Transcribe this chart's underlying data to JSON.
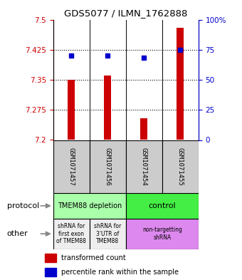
{
  "title": "GDS5077 / ILMN_1762888",
  "samples": [
    "GSM1071457",
    "GSM1071456",
    "GSM1071454",
    "GSM1071455"
  ],
  "red_values": [
    7.35,
    7.36,
    7.255,
    7.48
  ],
  "blue_values": [
    7.41,
    7.41,
    7.405,
    7.425
  ],
  "y_min": 7.2,
  "y_max": 7.5,
  "y_ticks": [
    7.2,
    7.275,
    7.35,
    7.425,
    7.5
  ],
  "y_tick_labels": [
    "7.2",
    "7.275",
    "7.35",
    "7.425",
    "7.5"
  ],
  "right_y_ticks": [
    0,
    25,
    50,
    75,
    100
  ],
  "right_y_tick_labels": [
    "0",
    "25",
    "50",
    "75",
    "100%"
  ],
  "dotted_lines": [
    7.425,
    7.35,
    7.275
  ],
  "protocol_left_label": "TMEM88 depletion",
  "protocol_left_color": "#aaffaa",
  "protocol_right_label": "control",
  "protocol_right_color": "#44ee44",
  "other_cells": [
    {
      "label": "shRNA for\nfirst exon\nof TMEM88",
      "color": "#eeeeee",
      "span": [
        0,
        1
      ]
    },
    {
      "label": "shRNA for\n3'UTR of\nTMEM88",
      "color": "#eeeeee",
      "span": [
        1,
        2
      ]
    },
    {
      "label": "non-targetting\nshRNA",
      "color": "#dd88ee",
      "span": [
        2,
        4
      ]
    }
  ],
  "sample_box_color": "#cccccc",
  "red_color": "#cc0000",
  "blue_color": "#0000cc",
  "legend_red": "transformed count",
  "legend_blue": "percentile rank within the sample"
}
